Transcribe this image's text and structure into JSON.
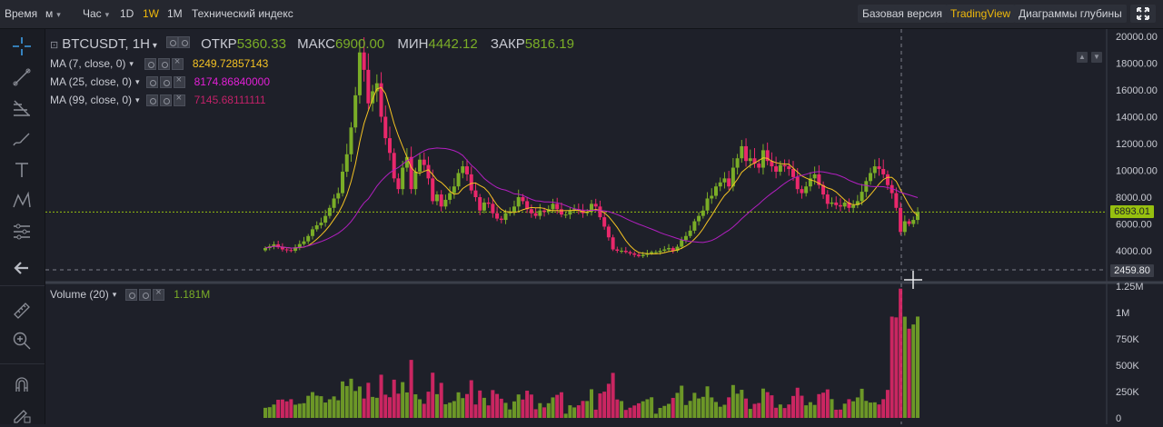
{
  "topbar": {
    "time_label": "Время",
    "minute_label": "м",
    "hour_label": "Час",
    "intervals": [
      "1D",
      "1W",
      "1M"
    ],
    "selected_interval": "1W",
    "index_button": "Технический индекс",
    "views": [
      "Базовая версия",
      "TradingView",
      "Диаграммы глубины"
    ],
    "selected_view": "TradingView"
  },
  "toolbar": {
    "icons": [
      "crosshair-icon",
      "trend-line-icon",
      "fibonacci-icon",
      "brush-icon",
      "text-icon",
      "pattern-icon",
      "prediction-icon",
      "back-arrow-icon",
      "ruler-icon",
      "zoom-in-icon",
      "magnet-icon",
      "pencil-lock-icon"
    ]
  },
  "legend": {
    "symbol": "BTCUSDT, 1H",
    "open_label": "ОТКР",
    "open_value": "5360.33",
    "high_label": "МАКС",
    "high_value": "6900.00",
    "low_label": "МИН",
    "low_value": "4442.12",
    "close_label": "ЗАКР",
    "close_value": "5816.19",
    "ma": [
      {
        "label": "MA (7, close, 0)",
        "value": "8249.72857143",
        "color": "#f5c323"
      },
      {
        "label": "MA (25, close, 0)",
        "value": "8174.86840000",
        "color": "#e21fd6"
      },
      {
        "label": "MA (99, close, 0)",
        "value": "7145.68111111",
        "color": "#c22168"
      }
    ],
    "volume_label": "Volume (20)",
    "volume_value": "1.181M"
  },
  "axis": {
    "price_ticks": [
      "20000.00",
      "18000.00",
      "16000.00",
      "14000.00",
      "12000.00",
      "10000.00",
      "8000.00",
      "6000.00",
      "4000.00"
    ],
    "current_price": "6893.01",
    "cursor_price": "2459.80",
    "volume_ticks": [
      "1.25M",
      "1M",
      "750K",
      "500K",
      "250K",
      "0"
    ]
  },
  "colors": {
    "up": "#7aad27",
    "down": "#e9286b",
    "ma7": "#f5c323",
    "ma25": "#b21fc0",
    "price_line": "#97c00f"
  },
  "chart_data": {
    "type": "candlestick",
    "symbol": "BTCUSDT",
    "price_axis_range": [
      2000,
      20400
    ],
    "volume_axis_range": [
      0,
      1300000
    ],
    "series": [
      {
        "name": "MA (7, close, 0)"
      },
      {
        "name": "MA (25, close, 0)"
      },
      {
        "name": "MA (99, close, 0)"
      },
      {
        "name": "Volume (20)"
      }
    ],
    "close": [
      4200,
      4330,
      4480,
      4260,
      4100,
      4050,
      4000,
      4260,
      4500,
      4700,
      5100,
      5600,
      5900,
      6100,
      6600,
      7200,
      7900,
      8300,
      9900,
      11200,
      13200,
      15600,
      18800,
      17500,
      15000,
      15900,
      16500,
      14000,
      12400,
      11300,
      9400,
      8600,
      10200,
      11000,
      8600,
      9900,
      10800,
      10400,
      9400,
      7700,
      8200,
      7300,
      7800,
      8300,
      8800,
      9800,
      10300,
      9700,
      8500,
      8000,
      7000,
      7600,
      7500,
      6800,
      6400,
      6300,
      6800,
      6900,
      7300,
      8000,
      7700,
      7100,
      6800,
      6600,
      7000,
      6900,
      7100,
      7500,
      7100,
      6700,
      6700,
      7000,
      7100,
      7000,
      6800,
      6900,
      7500,
      7300,
      6500,
      5800,
      5000,
      4100,
      4000,
      4000,
      3900,
      3800,
      3700,
      3600,
      3700,
      3800,
      3900,
      3900,
      4000,
      4100,
      4200,
      4000,
      4300,
      4800,
      5100,
      5500,
      6200,
      6600,
      7000,
      7900,
      8100,
      8800,
      9100,
      9400,
      8800,
      10200,
      10900,
      11800,
      10700,
      10900,
      10500,
      10200,
      11500,
      10700,
      10300,
      9900,
      10400,
      10300,
      10100,
      9500,
      8600,
      8300,
      8800,
      9400,
      9700,
      8900,
      8200,
      7500,
      7600,
      7400,
      7300,
      7600,
      7200,
      7400,
      7700,
      8400,
      9200,
      9800,
      10300,
      10100,
      9700,
      8900,
      8300,
      7200,
      5400,
      6200,
      6000,
      6300,
      6900
    ]
  }
}
